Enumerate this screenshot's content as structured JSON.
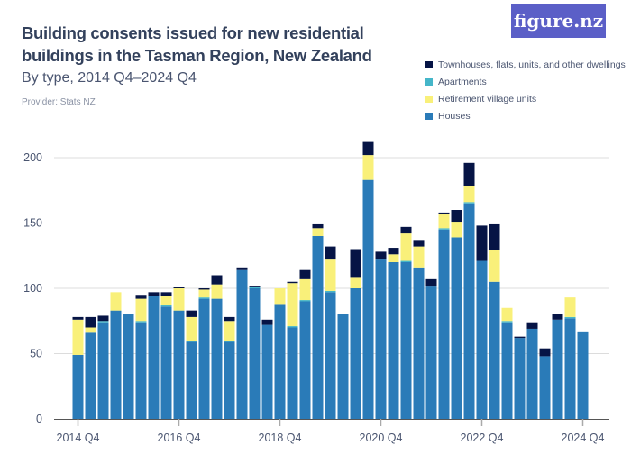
{
  "header": {
    "title": "Building consents issued for new residential buildings in the Tasman Region, New Zealand",
    "subtitle": "By type, 2014 Q4–2024 Q4",
    "provider": "Provider: Stats NZ",
    "logo_text": "figure.nz"
  },
  "chart_data": {
    "type": "bar",
    "stacked": true,
    "title": "Building consents issued for new residential buildings in the Tasman Region, New Zealand",
    "subtitle": "By type, 2014 Q4–2024 Q4",
    "xlabel": "",
    "ylabel": "",
    "ylim": [
      0,
      200
    ],
    "yticks": [
      0,
      50,
      100,
      150,
      200
    ],
    "xtick_labels": [
      "2014 Q4",
      "2016 Q4",
      "2018 Q4",
      "2020 Q4",
      "2022 Q4",
      "2024 Q4"
    ],
    "grid": true,
    "legend_position": "top-right",
    "categories": [
      "2014 Q4",
      "2015 Q1",
      "2015 Q2",
      "2015 Q3",
      "2015 Q4",
      "2016 Q1",
      "2016 Q2",
      "2016 Q3",
      "2016 Q4",
      "2017 Q1",
      "2017 Q2",
      "2017 Q3",
      "2017 Q4",
      "2018 Q1",
      "2018 Q2",
      "2018 Q3",
      "2018 Q4",
      "2019 Q1",
      "2019 Q2",
      "2019 Q3",
      "2019 Q4",
      "2020 Q1",
      "2020 Q2",
      "2020 Q3",
      "2020 Q4",
      "2021 Q1",
      "2021 Q2",
      "2021 Q3",
      "2021 Q4",
      "2022 Q1",
      "2022 Q2",
      "2022 Q3",
      "2022 Q4",
      "2023 Q1",
      "2023 Q2",
      "2023 Q3",
      "2023 Q4",
      "2024 Q1",
      "2024 Q2",
      "2024 Q3",
      "2024 Q4"
    ],
    "series": [
      {
        "name": "Houses",
        "color": "#2a7bb8",
        "values": [
          49,
          66,
          74,
          83,
          80,
          74,
          94,
          86,
          83,
          59,
          92,
          92,
          59,
          114,
          100,
          72,
          88,
          70,
          90,
          140,
          97,
          80,
          100,
          183,
          122,
          120,
          120,
          116,
          102,
          145,
          139,
          165,
          121,
          105,
          74,
          62,
          69,
          48,
          76,
          77,
          67
        ]
      },
      {
        "name": "Apartments",
        "color": "#45b6c9",
        "values": [
          0,
          0,
          1,
          0,
          0,
          1,
          0,
          1,
          0,
          1,
          1,
          0,
          1,
          0,
          1,
          0,
          0,
          1,
          1,
          0,
          1,
          0,
          0,
          0,
          0,
          0,
          1,
          0,
          0,
          1,
          0,
          1,
          0,
          0,
          1,
          0,
          0,
          0,
          0,
          1,
          0
        ]
      },
      {
        "name": "Retirement village units",
        "color": "#f9f07a",
        "values": [
          27,
          4,
          0,
          14,
          0,
          17,
          0,
          7,
          17,
          18,
          6,
          11,
          15,
          0,
          0,
          0,
          12,
          33,
          16,
          6,
          24,
          0,
          8,
          19,
          0,
          6,
          21,
          16,
          0,
          11,
          12,
          12,
          0,
          24,
          10,
          0,
          0,
          0,
          0,
          15,
          0
        ]
      },
      {
        "name": "Townhouses, flats, units, and other dwellings",
        "color": "#061445",
        "values": [
          2,
          8,
          4,
          0,
          0,
          3,
          3,
          3,
          1,
          5,
          1,
          7,
          3,
          2,
          1,
          4,
          0,
          1,
          7,
          3,
          10,
          0,
          22,
          10,
          6,
          5,
          5,
          5,
          5,
          1,
          9,
          18,
          27,
          20,
          0,
          1,
          5,
          6,
          4,
          0,
          0
        ]
      }
    ]
  },
  "legend": {
    "items": [
      {
        "label": "Townhouses, flats, units, and other dwellings",
        "color": "#061445"
      },
      {
        "label": "Apartments",
        "color": "#45b6c9"
      },
      {
        "label": "Retirement village units",
        "color": "#f9f07a"
      },
      {
        "label": "Houses",
        "color": "#2a7bb8"
      }
    ]
  }
}
